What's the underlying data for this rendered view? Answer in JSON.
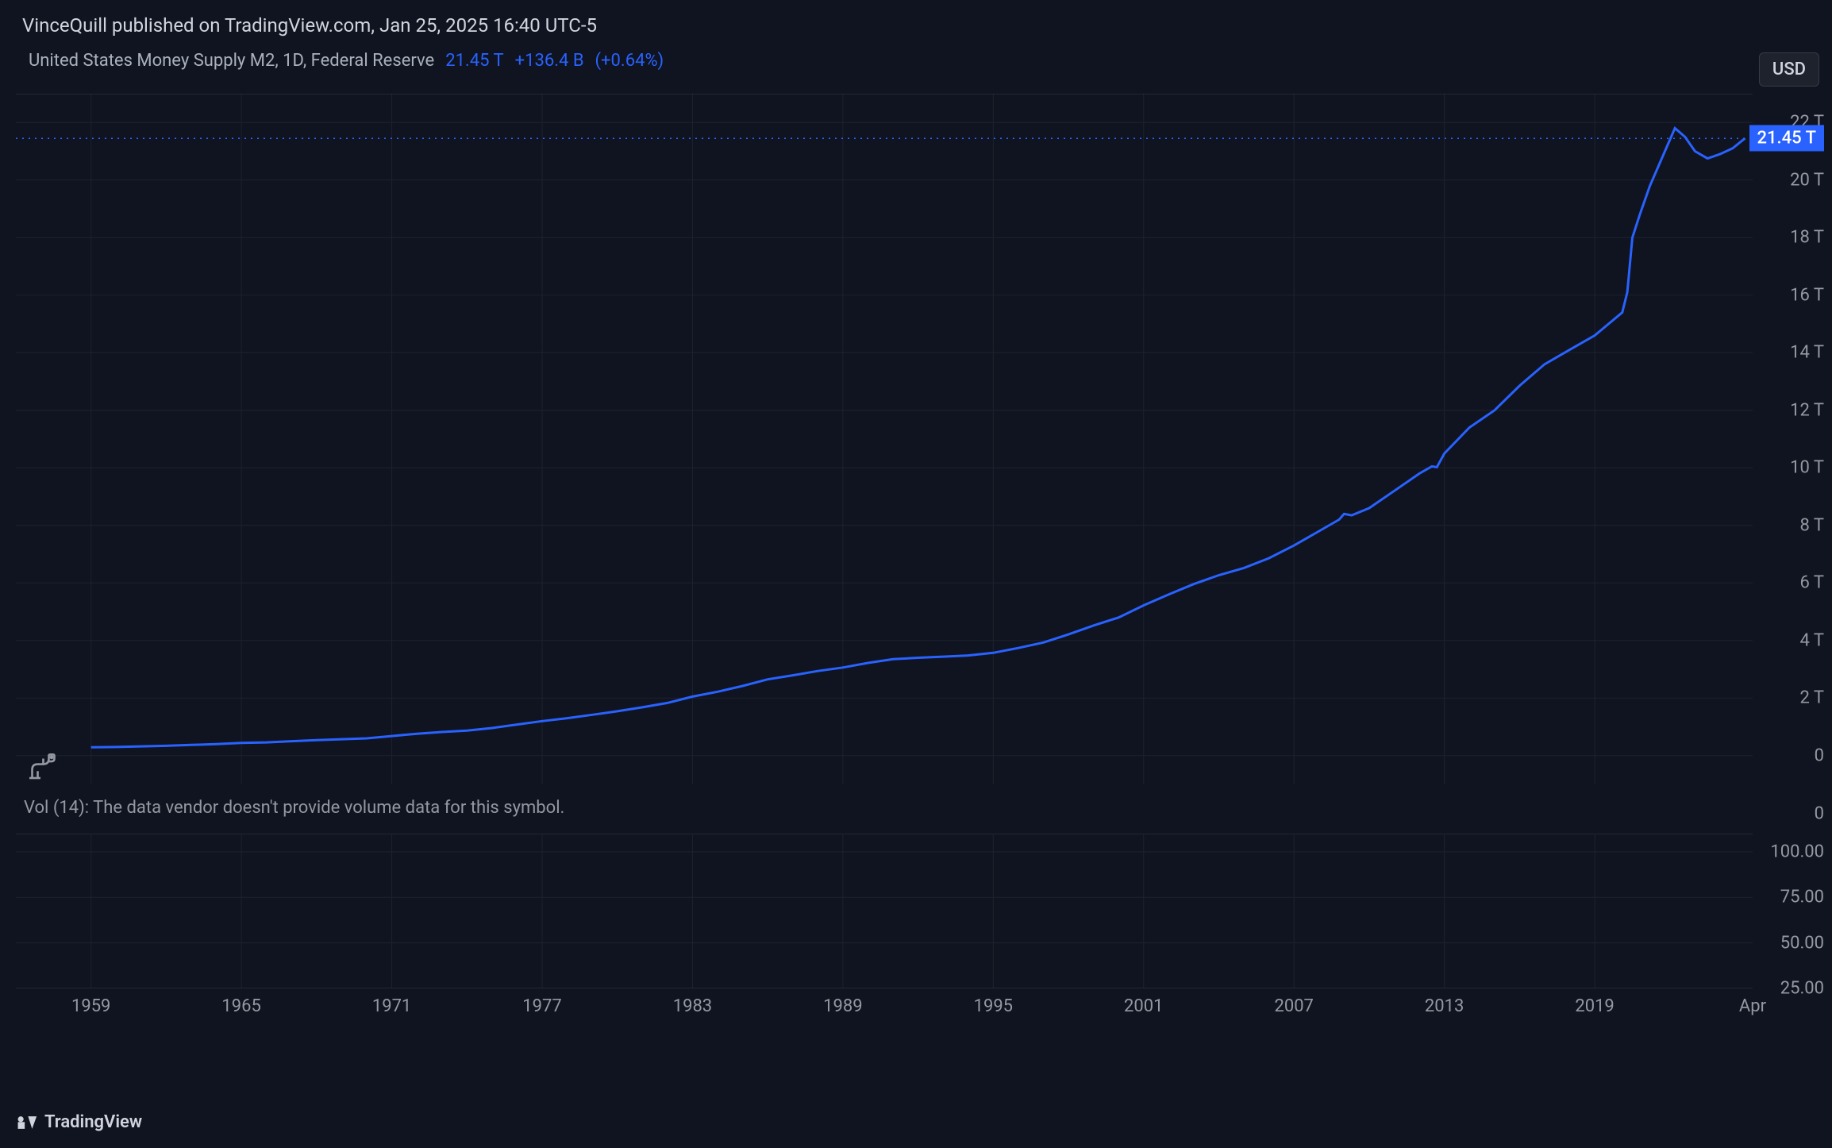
{
  "header": {
    "publish_text": "VinceQuill published on TradingView.com, Jan 25, 2025 16:40 UTC-5"
  },
  "series": {
    "name": "United States Money Supply M2, 1D, Federal Reserve",
    "current_value": "21.45 T",
    "change_abs": "+136.4 B",
    "change_pct": "(+0.64%)"
  },
  "currency_badge": "USD",
  "main_chart": {
    "type": "line",
    "line_color": "#2962ff",
    "line_width": 3,
    "background_color": "#0f1420",
    "grid_color": "#1e222d",
    "border_color": "#363a45",
    "y_axis": {
      "min": -1,
      "max": 23,
      "unit": "T",
      "ticks": [
        0,
        2,
        4,
        6,
        8,
        10,
        12,
        14,
        16,
        18,
        20,
        22
      ],
      "tick_labels": [
        "0",
        "2 T",
        "4 T",
        "6 T",
        "8 T",
        "10 T",
        "12 T",
        "14 T",
        "16 T",
        "18 T",
        "20 T",
        "22 T"
      ],
      "label_fontsize": 22,
      "label_color": "#9598a1"
    },
    "x_axis": {
      "min": 1956,
      "max": 2025.3,
      "ticks": [
        1959,
        1965,
        1971,
        1977,
        1983,
        1989,
        1995,
        2001,
        2007,
        2013,
        2019
      ],
      "tick_labels": [
        "1959",
        "1965",
        "1971",
        "1977",
        "1983",
        "1989",
        "1995",
        "2001",
        "2007",
        "2013",
        "2019"
      ],
      "end_label": "Apr",
      "end_label_x": 2025.3,
      "label_fontsize": 22,
      "label_color": "#9598a1"
    },
    "current_price_line": {
      "value": 21.45,
      "label": "21.45 T",
      "badge_bg": "#2962ff",
      "badge_fg": "#ffffff",
      "style": "dotted"
    },
    "data": [
      {
        "x": 1959,
        "y": 0.29
      },
      {
        "x": 1960,
        "y": 0.3
      },
      {
        "x": 1961,
        "y": 0.32
      },
      {
        "x": 1962,
        "y": 0.34
      },
      {
        "x": 1963,
        "y": 0.37
      },
      {
        "x": 1964,
        "y": 0.4
      },
      {
        "x": 1965,
        "y": 0.44
      },
      {
        "x": 1966,
        "y": 0.46
      },
      {
        "x": 1967,
        "y": 0.5
      },
      {
        "x": 1968,
        "y": 0.54
      },
      {
        "x": 1969,
        "y": 0.57
      },
      {
        "x": 1970,
        "y": 0.6
      },
      {
        "x": 1971,
        "y": 0.68
      },
      {
        "x": 1972,
        "y": 0.76
      },
      {
        "x": 1973,
        "y": 0.82
      },
      {
        "x": 1974,
        "y": 0.87
      },
      {
        "x": 1975,
        "y": 0.96
      },
      {
        "x": 1976,
        "y": 1.08
      },
      {
        "x": 1977,
        "y": 1.2
      },
      {
        "x": 1978,
        "y": 1.3
      },
      {
        "x": 1979,
        "y": 1.42
      },
      {
        "x": 1980,
        "y": 1.54
      },
      {
        "x": 1981,
        "y": 1.68
      },
      {
        "x": 1982,
        "y": 1.83
      },
      {
        "x": 1983,
        "y": 2.05
      },
      {
        "x": 1984,
        "y": 2.22
      },
      {
        "x": 1985,
        "y": 2.42
      },
      {
        "x": 1986,
        "y": 2.65
      },
      {
        "x": 1987,
        "y": 2.79
      },
      {
        "x": 1988,
        "y": 2.94
      },
      {
        "x": 1989,
        "y": 3.06
      },
      {
        "x": 1990,
        "y": 3.22
      },
      {
        "x": 1991,
        "y": 3.35
      },
      {
        "x": 1992,
        "y": 3.4
      },
      {
        "x": 1993,
        "y": 3.44
      },
      {
        "x": 1994,
        "y": 3.48
      },
      {
        "x": 1995,
        "y": 3.57
      },
      {
        "x": 1996,
        "y": 3.74
      },
      {
        "x": 1997,
        "y": 3.93
      },
      {
        "x": 1998,
        "y": 4.21
      },
      {
        "x": 1999,
        "y": 4.52
      },
      {
        "x": 2000,
        "y": 4.8
      },
      {
        "x": 2001,
        "y": 5.22
      },
      {
        "x": 2002,
        "y": 5.6
      },
      {
        "x": 2003,
        "y": 5.96
      },
      {
        "x": 2004,
        "y": 6.27
      },
      {
        "x": 2005,
        "y": 6.52
      },
      {
        "x": 2006,
        "y": 6.86
      },
      {
        "x": 2007,
        "y": 7.3
      },
      {
        "x": 2008,
        "y": 7.8
      },
      {
        "x": 2008.8,
        "y": 8.2
      },
      {
        "x": 2009,
        "y": 8.4
      },
      {
        "x": 2009.3,
        "y": 8.35
      },
      {
        "x": 2010,
        "y": 8.6
      },
      {
        "x": 2011,
        "y": 9.2
      },
      {
        "x": 2012,
        "y": 9.8
      },
      {
        "x": 2012.5,
        "y": 10.05
      },
      {
        "x": 2012.7,
        "y": 10.02
      },
      {
        "x": 2013,
        "y": 10.5
      },
      {
        "x": 2014,
        "y": 11.4
      },
      {
        "x": 2015,
        "y": 12.0
      },
      {
        "x": 2016,
        "y": 12.85
      },
      {
        "x": 2017,
        "y": 13.6
      },
      {
        "x": 2018,
        "y": 14.1
      },
      {
        "x": 2019,
        "y": 14.6
      },
      {
        "x": 2020.1,
        "y": 15.4
      },
      {
        "x": 2020.3,
        "y": 16.1
      },
      {
        "x": 2020.5,
        "y": 18.0
      },
      {
        "x": 2020.8,
        "y": 18.8
      },
      {
        "x": 2021.2,
        "y": 19.8
      },
      {
        "x": 2021.8,
        "y": 21.0
      },
      {
        "x": 2022.2,
        "y": 21.8
      },
      {
        "x": 2022.6,
        "y": 21.5
      },
      {
        "x": 2023.0,
        "y": 21.0
      },
      {
        "x": 2023.5,
        "y": 20.75
      },
      {
        "x": 2024.0,
        "y": 20.9
      },
      {
        "x": 2024.5,
        "y": 21.1
      },
      {
        "x": 2025.0,
        "y": 21.45
      }
    ]
  },
  "volume_panel": {
    "message": "Vol (14): The data vendor doesn't provide volume data for this symbol.",
    "y_ticks": [
      0
    ],
    "y_tick_labels": [
      "0"
    ],
    "label_color": "#9598a1"
  },
  "lower_panel": {
    "y_ticks": [
      25.0,
      50.0,
      75.0,
      100.0
    ],
    "y_tick_labels": [
      "25.00",
      "50.00",
      "75.00",
      "100.00"
    ],
    "label_color": "#9598a1",
    "grid_color": "#1e222d"
  },
  "footer": {
    "brand": "TradingView"
  },
  "colors": {
    "background": "#0f1420",
    "text_primary": "#d1d4dc",
    "text_secondary": "#9598a1",
    "accent": "#2962ff",
    "panel_bg": "#1e222d",
    "border": "#363a45"
  }
}
